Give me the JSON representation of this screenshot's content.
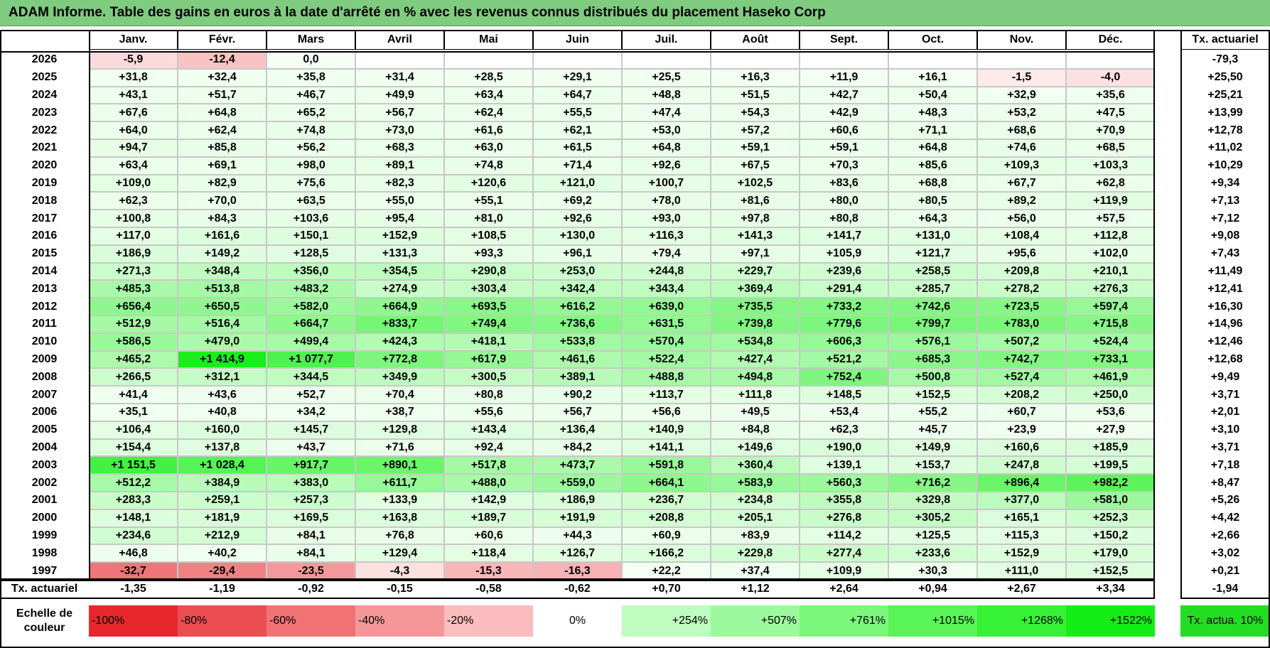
{
  "title": "ADAM Informe. Table des gains en euros à la date d'arrêté en % avec les revenus connus distribués du placement Haseko Corp",
  "chart_data": {
    "type": "heatmap",
    "title": "ADAM Informe. Table des gains en euros à la date d'arrêté en % avec les revenus connus distribués du placement Haseko Corp",
    "columns": [
      "Janv.",
      "Févr.",
      "Mars",
      "Avril",
      "Mai",
      "Juin",
      "Juil.",
      "Août",
      "Sept.",
      "Oct.",
      "Nov.",
      "Déc."
    ],
    "annual_header": "Tx. actuariel",
    "rows": [
      {
        "year": "2026",
        "values": [
          "-5,9",
          "-12,4",
          "0,0",
          "",
          "",
          "",
          "",
          "",
          "",
          "",
          "",
          ""
        ],
        "annual": "-79,3"
      },
      {
        "year": "2025",
        "values": [
          "+31,8",
          "+32,4",
          "+35,8",
          "+31,4",
          "+28,5",
          "+29,1",
          "+25,5",
          "+16,3",
          "+11,9",
          "+16,1",
          "-1,5",
          "-4,0"
        ],
        "annual": "+25,50"
      },
      {
        "year": "2024",
        "values": [
          "+43,1",
          "+51,7",
          "+46,7",
          "+49,9",
          "+63,4",
          "+64,7",
          "+48,8",
          "+51,5",
          "+42,7",
          "+50,4",
          "+32,9",
          "+35,6"
        ],
        "annual": "+25,21"
      },
      {
        "year": "2023",
        "values": [
          "+67,6",
          "+64,8",
          "+65,2",
          "+56,7",
          "+62,4",
          "+55,5",
          "+47,4",
          "+54,3",
          "+42,9",
          "+48,3",
          "+53,2",
          "+47,5"
        ],
        "annual": "+13,99"
      },
      {
        "year": "2022",
        "values": [
          "+64,0",
          "+62,4",
          "+74,8",
          "+73,0",
          "+61,6",
          "+62,1",
          "+53,0",
          "+57,2",
          "+60,6",
          "+71,1",
          "+68,6",
          "+70,9"
        ],
        "annual": "+12,78"
      },
      {
        "year": "2021",
        "values": [
          "+94,7",
          "+85,8",
          "+56,2",
          "+68,3",
          "+63,0",
          "+61,5",
          "+64,8",
          "+59,1",
          "+59,1",
          "+64,8",
          "+74,6",
          "+68,5"
        ],
        "annual": "+11,02"
      },
      {
        "year": "2020",
        "values": [
          "+63,4",
          "+69,1",
          "+98,0",
          "+89,1",
          "+74,8",
          "+71,4",
          "+92,6",
          "+67,5",
          "+70,3",
          "+85,6",
          "+109,3",
          "+103,3"
        ],
        "annual": "+10,29"
      },
      {
        "year": "2019",
        "values": [
          "+109,0",
          "+82,9",
          "+75,6",
          "+82,3",
          "+120,6",
          "+121,0",
          "+100,7",
          "+102,5",
          "+83,6",
          "+68,8",
          "+67,7",
          "+62,8"
        ],
        "annual": "+9,34"
      },
      {
        "year": "2018",
        "values": [
          "+62,3",
          "+70,0",
          "+63,5",
          "+55,0",
          "+55,1",
          "+69,2",
          "+78,0",
          "+81,6",
          "+80,0",
          "+80,5",
          "+89,2",
          "+119,9"
        ],
        "annual": "+7,13"
      },
      {
        "year": "2017",
        "values": [
          "+100,8",
          "+84,3",
          "+103,6",
          "+95,4",
          "+81,0",
          "+92,6",
          "+93,0",
          "+97,8",
          "+80,8",
          "+64,3",
          "+56,0",
          "+57,5"
        ],
        "annual": "+7,12"
      },
      {
        "year": "2016",
        "values": [
          "+117,0",
          "+161,6",
          "+150,1",
          "+152,9",
          "+108,5",
          "+130,0",
          "+116,3",
          "+141,3",
          "+141,7",
          "+131,0",
          "+108,4",
          "+112,8"
        ],
        "annual": "+9,08"
      },
      {
        "year": "2015",
        "values": [
          "+186,9",
          "+149,2",
          "+128,5",
          "+131,3",
          "+93,3",
          "+96,1",
          "+79,4",
          "+97,1",
          "+105,9",
          "+121,7",
          "+95,6",
          "+102,0"
        ],
        "annual": "+7,43"
      },
      {
        "year": "2014",
        "values": [
          "+271,3",
          "+348,4",
          "+356,0",
          "+354,5",
          "+290,8",
          "+253,0",
          "+244,8",
          "+229,7",
          "+239,6",
          "+258,5",
          "+209,8",
          "+210,1"
        ],
        "annual": "+11,49"
      },
      {
        "year": "2013",
        "values": [
          "+485,3",
          "+513,8",
          "+483,2",
          "+274,9",
          "+303,4",
          "+342,4",
          "+343,4",
          "+369,4",
          "+291,4",
          "+285,7",
          "+278,2",
          "+276,3"
        ],
        "annual": "+12,41"
      },
      {
        "year": "2012",
        "values": [
          "+656,4",
          "+650,5",
          "+582,0",
          "+664,9",
          "+693,5",
          "+616,2",
          "+639,0",
          "+735,5",
          "+733,2",
          "+742,6",
          "+723,5",
          "+597,4"
        ],
        "annual": "+16,30"
      },
      {
        "year": "2011",
        "values": [
          "+512,9",
          "+516,4",
          "+664,7",
          "+833,7",
          "+749,4",
          "+736,6",
          "+631,5",
          "+739,8",
          "+779,6",
          "+799,7",
          "+783,0",
          "+715,8"
        ],
        "annual": "+14,96"
      },
      {
        "year": "2010",
        "values": [
          "+586,5",
          "+479,0",
          "+499,4",
          "+424,3",
          "+418,1",
          "+533,8",
          "+570,4",
          "+534,8",
          "+606,3",
          "+576,1",
          "+507,2",
          "+524,4"
        ],
        "annual": "+12,46"
      },
      {
        "year": "2009",
        "values": [
          "+465,2",
          "+1 414,9",
          "+1 077,7",
          "+772,8",
          "+617,9",
          "+461,6",
          "+522,4",
          "+427,4",
          "+521,2",
          "+685,3",
          "+742,7",
          "+733,1"
        ],
        "annual": "+12,68"
      },
      {
        "year": "2008",
        "values": [
          "+266,5",
          "+312,1",
          "+344,5",
          "+349,9",
          "+300,5",
          "+389,1",
          "+488,8",
          "+494,8",
          "+752,4",
          "+500,8",
          "+527,4",
          "+461,9"
        ],
        "annual": "+9,49"
      },
      {
        "year": "2007",
        "values": [
          "+41,4",
          "+43,6",
          "+52,7",
          "+70,4",
          "+80,8",
          "+90,2",
          "+113,7",
          "+111,8",
          "+148,5",
          "+152,5",
          "+208,2",
          "+250,0"
        ],
        "annual": "+3,71"
      },
      {
        "year": "2006",
        "values": [
          "+35,1",
          "+40,8",
          "+34,2",
          "+38,7",
          "+55,6",
          "+56,7",
          "+56,6",
          "+49,5",
          "+53,4",
          "+55,2",
          "+60,7",
          "+53,6"
        ],
        "annual": "+2,01"
      },
      {
        "year": "2005",
        "values": [
          "+106,4",
          "+160,0",
          "+145,7",
          "+129,8",
          "+143,4",
          "+136,4",
          "+140,9",
          "+84,8",
          "+62,3",
          "+45,7",
          "+23,9",
          "+27,9"
        ],
        "annual": "+3,10"
      },
      {
        "year": "2004",
        "values": [
          "+154,4",
          "+137,8",
          "+43,7",
          "+71,6",
          "+92,4",
          "+84,2",
          "+141,1",
          "+149,6",
          "+190,0",
          "+149,9",
          "+160,6",
          "+185,9"
        ],
        "annual": "+3,71"
      },
      {
        "year": "2003",
        "values": [
          "+1 151,5",
          "+1 028,4",
          "+917,7",
          "+890,1",
          "+517,8",
          "+473,7",
          "+591,8",
          "+360,4",
          "+139,1",
          "+153,7",
          "+247,8",
          "+199,5"
        ],
        "annual": "+7,18"
      },
      {
        "year": "2002",
        "values": [
          "+512,2",
          "+384,9",
          "+383,0",
          "+611,7",
          "+488,0",
          "+559,0",
          "+664,1",
          "+583,9",
          "+560,3",
          "+716,2",
          "+896,4",
          "+982,2"
        ],
        "annual": "+8,47"
      },
      {
        "year": "2001",
        "values": [
          "+283,3",
          "+259,1",
          "+257,3",
          "+133,9",
          "+142,9",
          "+186,9",
          "+236,7",
          "+234,8",
          "+355,8",
          "+329,8",
          "+377,0",
          "+581,0"
        ],
        "annual": "+5,26"
      },
      {
        "year": "2000",
        "values": [
          "+148,1",
          "+181,9",
          "+169,5",
          "+163,8",
          "+189,7",
          "+191,9",
          "+208,8",
          "+205,1",
          "+276,8",
          "+305,2",
          "+165,1",
          "+252,3"
        ],
        "annual": "+4,42"
      },
      {
        "year": "1999",
        "values": [
          "+234,6",
          "+212,9",
          "+84,1",
          "+76,8",
          "+60,6",
          "+44,3",
          "+60,9",
          "+83,9",
          "+114,2",
          "+125,5",
          "+115,3",
          "+150,2"
        ],
        "annual": "+2,66"
      },
      {
        "year": "1998",
        "values": [
          "+46,8",
          "+40,2",
          "+84,1",
          "+129,4",
          "+118,4",
          "+126,7",
          "+166,2",
          "+229,8",
          "+277,4",
          "+233,6",
          "+152,9",
          "+179,0"
        ],
        "annual": "+3,02"
      },
      {
        "year": "1997",
        "values": [
          "-32,7",
          "-29,4",
          "-23,5",
          "-4,3",
          "-15,3",
          "-16,3",
          "+22,2",
          "+37,4",
          "+109,9",
          "+30,3",
          "+111,0",
          "+152,5"
        ],
        "annual": "+0,21"
      }
    ],
    "summary_row": {
      "label": "Tx. actuariel",
      "values": [
        "-1,35",
        "-1,19",
        "-0,92",
        "-0,15",
        "-0,58",
        "-0,62",
        "+0,70",
        "+1,12",
        "+2,64",
        "+0,94",
        "+2,67",
        "+3,34"
      ],
      "annual": "-1,94"
    },
    "color_scale": {
      "label": "Echelle de couleur",
      "stops": [
        "-100%",
        "-80%",
        "-60%",
        "-40%",
        "-20%",
        "0%",
        "+254%",
        "+507%",
        "+761%",
        "+1015%",
        "+1268%",
        "+1522%"
      ],
      "stop_values": [
        -100,
        -80,
        -60,
        -40,
        -20,
        0,
        254,
        507,
        761,
        1015,
        1268,
        1522
      ],
      "annual_label": "Tx. actua. 10%",
      "negative_color": "#e8262b",
      "positive_color": "#00ee00",
      "neutral_color": "#ffffff"
    }
  }
}
